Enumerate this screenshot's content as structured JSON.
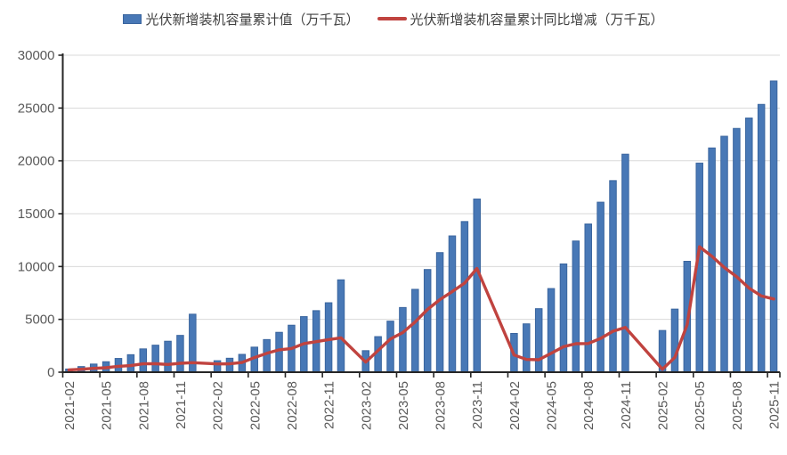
{
  "page": {
    "background": "#FFFFFF"
  },
  "chart_data": {
    "type": "bar+line",
    "title": "",
    "xlabel": "",
    "ylabel": "",
    "ylim": [
      0,
      30000
    ],
    "yticks": [
      0,
      5000,
      10000,
      15000,
      20000,
      25000,
      30000
    ],
    "grid": "horizontal",
    "legend_position": "top",
    "axis_color": "#262626",
    "gridline_color": "#D9D9D9",
    "tick_label_color": "#595959",
    "legend_text_color": "#404040",
    "categories": [
      "2021-02",
      "2021-03",
      "2021-04",
      "2021-05",
      "2021-06",
      "2021-07",
      "2021-08",
      "2021-09",
      "2021-10",
      "2021-11",
      "2021-12",
      "2022-01",
      "2022-02",
      "2022-03",
      "2022-04",
      "2022-05",
      "2022-06",
      "2022-07",
      "2022-08",
      "2022-09",
      "2022-10",
      "2022-11",
      "2022-12",
      "2023-01",
      "2023-02",
      "2023-03",
      "2023-04",
      "2023-05",
      "2023-06",
      "2023-07",
      "2023-08",
      "2023-09",
      "2023-10",
      "2023-11",
      "2023-12",
      "2024-01",
      "2024-02",
      "2024-03",
      "2024-04",
      "2024-05",
      "2024-06",
      "2024-07",
      "2024-08",
      "2024-09",
      "2024-10",
      "2024-11",
      "2024-12",
      "2025-01",
      "2025-02",
      "2025-03",
      "2025-04",
      "2025-05",
      "2025-06",
      "2025-07",
      "2025-08",
      "2025-09",
      "2025-10",
      "2025-11"
    ],
    "xtick_labels": [
      "2021-02",
      "2021-05",
      "2021-08",
      "2021-11",
      "2022-02",
      "2022-05",
      "2022-08",
      "2022-11",
      "2023-02",
      "2023-05",
      "2023-08",
      "2023-11",
      "2024-02",
      "2024-05",
      "2024-08",
      "2024-11",
      "2025-02",
      "2025-05",
      "2025-08",
      "2025-11"
    ],
    "xtick_label_interval": 3,
    "series": [
      {
        "name": "光伏新增装机容量累计值（万千瓦）",
        "type": "bar",
        "color": "#4878B6",
        "border_color": "#3A659E",
        "values": [
          300,
          533,
          770,
          990,
          1301,
          1656,
          2205,
          2556,
          2931,
          3483,
          5488,
          null,
          1086,
          1321,
          1686,
          2371,
          3088,
          3773,
          4447,
          5260,
          5824,
          6571,
          8741,
          null,
          2037,
          3366,
          4831,
          6121,
          7842,
          9716,
          11316,
          12894,
          14256,
          16388,
          null,
          null,
          3666,
          4574,
          6011,
          7915,
          10248,
          12416,
          14026,
          16088,
          18130,
          20630,
          null,
          null,
          3947,
          5971,
          10493,
          19785,
          21221,
          22329,
          23069,
          24053,
          25343,
          27560
        ]
      },
      {
        "name": "光伏新增装机容量累计同比增减（万千瓦）",
        "type": "line",
        "color": "#C0433F",
        "values": [
          220,
          280,
          360,
          420,
          560,
          620,
          790,
          800,
          730,
          845,
          900,
          null,
          786,
          788,
          916,
          1381,
          1787,
          2117,
          2242,
          2704,
          2893,
          3088,
          3253,
          null,
          951,
          2045,
          3145,
          3750,
          4754,
          5943,
          6869,
          7634,
          8432,
          9817,
          null,
          null,
          1629,
          1208,
          1180,
          1794,
          2406,
          2700,
          2710,
          3194,
          3874,
          4242,
          null,
          null,
          281,
          1397,
          4482,
          11870,
          10973,
          9913,
          9043,
          7965,
          7213,
          6930
        ]
      }
    ]
  }
}
